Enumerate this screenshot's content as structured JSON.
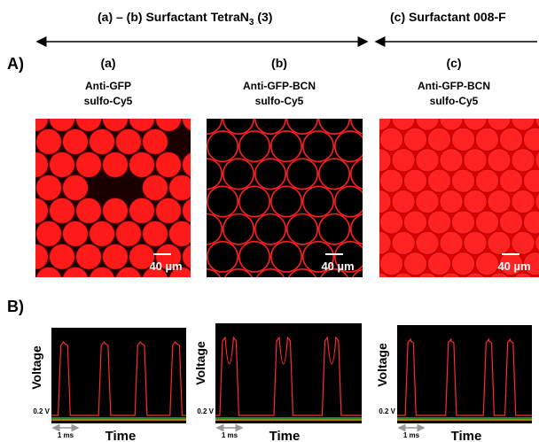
{
  "header": {
    "group_ab": {
      "text": "(a) – (b) Surfactant TetraN",
      "subscript": "3",
      "suffix": " (3)"
    },
    "group_c": "(c) Surfactant 008-F"
  },
  "section_a": "A)",
  "panels": [
    {
      "letter": "(a)",
      "line1": "Anti-GFP",
      "line2": "sulfo-Cy5",
      "scale_bar": "40 µm"
    },
    {
      "letter": "(b)",
      "line1": "Anti-GFP-BCN",
      "line2": "sulfo-Cy5",
      "scale_bar": "40 µm"
    },
    {
      "letter": "(c)",
      "line1": "Anti-GFP-BCN",
      "line2": "sulfo-Cy5",
      "scale_bar": "40 µm"
    }
  ],
  "section_b": "B)",
  "traces": [
    {
      "y_label": "Voltage",
      "level": "0.2 V",
      "time_bar": "1 ms",
      "x_label": "Time"
    },
    {
      "y_label": "Voltage",
      "level": "0.2 V",
      "time_bar": "1 ms",
      "x_label": "Time"
    },
    {
      "y_label": "Voltage",
      "level": "0.2 V",
      "time_bar": "1 ms",
      "x_label": "Time"
    }
  ]
}
